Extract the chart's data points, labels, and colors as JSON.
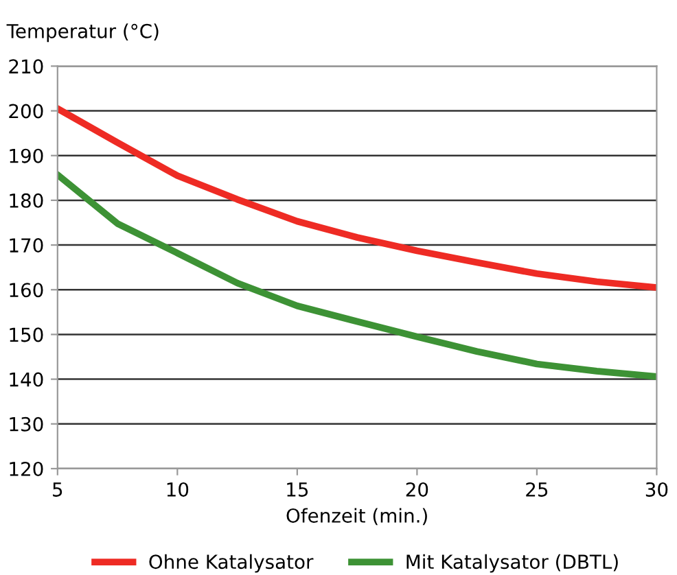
{
  "chart_data": {
    "type": "line",
    "ylabel": "Temperatur (°C)",
    "xlabel": "Ofenzeit (min.)",
    "x": [
      5,
      7.5,
      10,
      12.5,
      15,
      17.5,
      20,
      22.5,
      25,
      27.5,
      30
    ],
    "series": [
      {
        "name": "Ohne Katalysator",
        "color": "#ee2b24",
        "values": [
          200.5,
          192.9,
          185.5,
          180.2,
          175.3,
          171.7,
          168.7,
          166.1,
          163.6,
          161.8,
          160.5
        ]
      },
      {
        "name": "Mit Katalysator (DBTL)",
        "color": "#3d9235",
        "values": [
          185.7,
          174.8,
          168.2,
          161.5,
          156.4,
          152.9,
          149.5,
          146.2,
          143.4,
          141.8,
          140.6
        ]
      }
    ],
    "xlim": [
      5,
      30
    ],
    "xticks": [
      5,
      10,
      15,
      20,
      25,
      30
    ],
    "ylim": [
      120,
      210
    ],
    "yticks": [
      120,
      130,
      140,
      150,
      160,
      170,
      180,
      190,
      200,
      210
    ],
    "grid": "y",
    "legend": "bottom",
    "marker": "none",
    "line_style": "solid"
  }
}
